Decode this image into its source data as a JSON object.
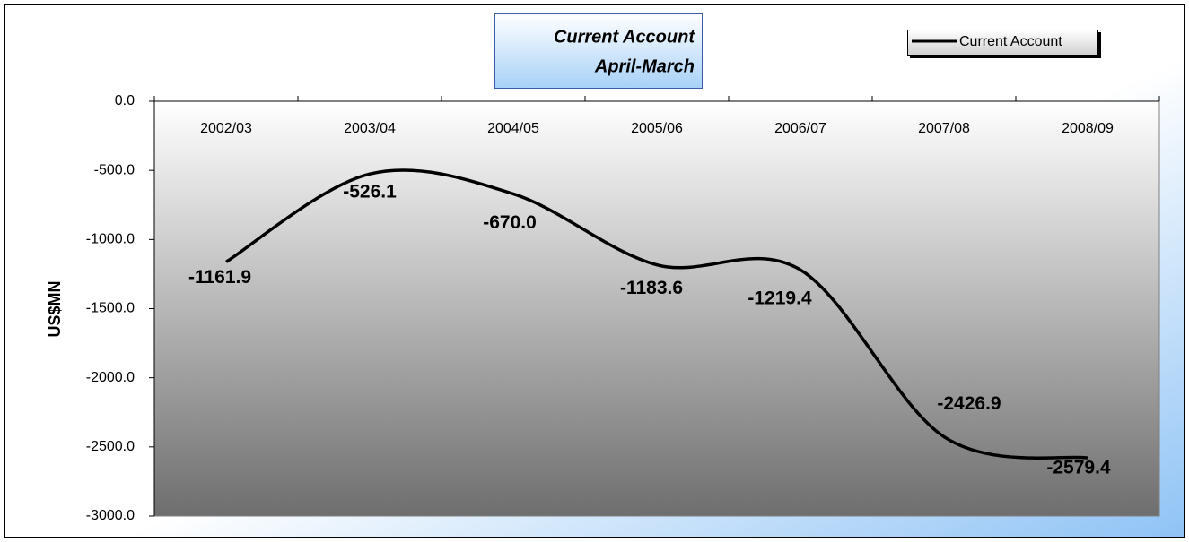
{
  "chart_data": {
    "type": "line",
    "title": "Current Account",
    "subtitle": "April-March",
    "y_label": "US$MN",
    "categories": [
      "2002/03",
      "2003/04",
      "2004/05",
      "2005/06",
      "2006/07",
      "2007/08",
      "2008/09"
    ],
    "series": [
      {
        "name": "Current Account",
        "color": "#000000",
        "values": [
          -1161.9,
          -526.1,
          -670.0,
          -1183.6,
          -1219.4,
          -2426.9,
          -2579.4
        ],
        "value_labels": [
          "-1161.9",
          "-526.1",
          "-670.0",
          "-1183.6",
          "-1219.4",
          "-2426.9",
          "-2579.4"
        ]
      }
    ],
    "ylim": [
      -3000,
      0
    ],
    "yticks": [
      {
        "value": 0,
        "label": "0.0"
      },
      {
        "value": -500,
        "label": "-500.0"
      },
      {
        "value": -1000,
        "label": "-1000.0"
      },
      {
        "value": -1500,
        "label": "-1500.0"
      },
      {
        "value": -2000,
        "label": "-2000.0"
      },
      {
        "value": -2500,
        "label": "-2500.0"
      },
      {
        "value": -3000,
        "label": "-3000.0"
      }
    ],
    "smooth": true,
    "legend": "top-right"
  }
}
